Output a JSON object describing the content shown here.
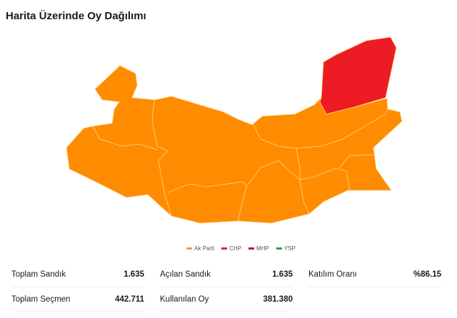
{
  "title": "Harita Üzerinde Oy Dağılımı",
  "colors": {
    "ak_parti": "#ff8c00",
    "chp": "#ed1c24",
    "mhp": "#c8102e",
    "ysp": "#3a9b46"
  },
  "legend": [
    {
      "label": "Ak Parti",
      "color": "#f0a030"
    },
    {
      "label": "CHP",
      "color": "#ed1c24"
    },
    {
      "label": "MHP",
      "color": "#c8102e"
    },
    {
      "label": "YSP",
      "color": "#3a9b46"
    }
  ],
  "stats": {
    "toplam_sandik": {
      "label": "Toplam Sandık",
      "value": "1.635"
    },
    "acilan_sandik": {
      "label": "Açılan Sandık",
      "value": "1.635"
    },
    "katilim_orani": {
      "label": "Katılım Oranı",
      "value": "%86.15"
    },
    "toplam_secmen": {
      "label": "Toplam Seçmen",
      "value": "442.711"
    },
    "kullanilan_oy": {
      "label": "Kullanılan Oy",
      "value": "381.380"
    }
  }
}
